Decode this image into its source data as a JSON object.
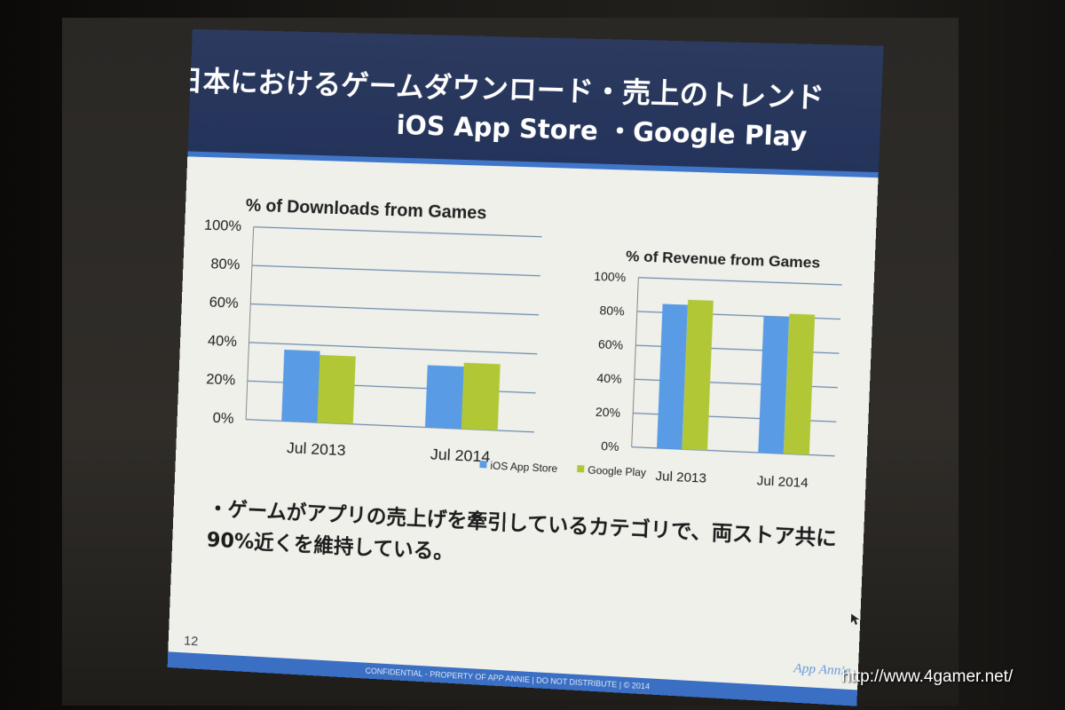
{
  "slide": {
    "title_line1": "日本におけるゲームダウンロード・売上のトレンド",
    "title_line2": "iOS App Store ・Google Play",
    "bullet_text": "・ゲームがアプリの売上げを牽引しているカテゴリで、両ストア共に 90%近くを維持している。",
    "page_number": "12",
    "footer": "CONFIDENTIAL - PROPERTY OF APP ANNIE | DO NOT DISTRIBUTE | © 2014",
    "brand": "App Annie"
  },
  "watermark": "http://www.4gamer.net/",
  "colors": {
    "ios": "#5a9be6",
    "google": "#b2c736",
    "grid": "#6f8bb0"
  },
  "legend": [
    "iOS App Store",
    "Google Play"
  ],
  "chart_data": [
    {
      "type": "bar",
      "title": "% of Downloads from Games",
      "categories": [
        "Jul 2013",
        "Jul 2014"
      ],
      "series": [
        {
          "name": "iOS App Store",
          "values": [
            37,
            32
          ]
        },
        {
          "name": "Google Play",
          "values": [
            35,
            34
          ]
        }
      ],
      "yticks": [
        "0%",
        "20%",
        "40%",
        "60%",
        "80%",
        "100%"
      ],
      "ylim": [
        0,
        100
      ],
      "grid": true
    },
    {
      "type": "bar",
      "title": "% of Revenue from Games",
      "categories": [
        "Jul 2013",
        "Jul 2014"
      ],
      "series": [
        {
          "name": "iOS App Store",
          "values": [
            85,
            80
          ]
        },
        {
          "name": "Google Play",
          "values": [
            88,
            82
          ]
        }
      ],
      "yticks": [
        "0%",
        "20%",
        "40%",
        "60%",
        "80%",
        "100%"
      ],
      "ylim": [
        0,
        100
      ],
      "grid": true
    }
  ]
}
